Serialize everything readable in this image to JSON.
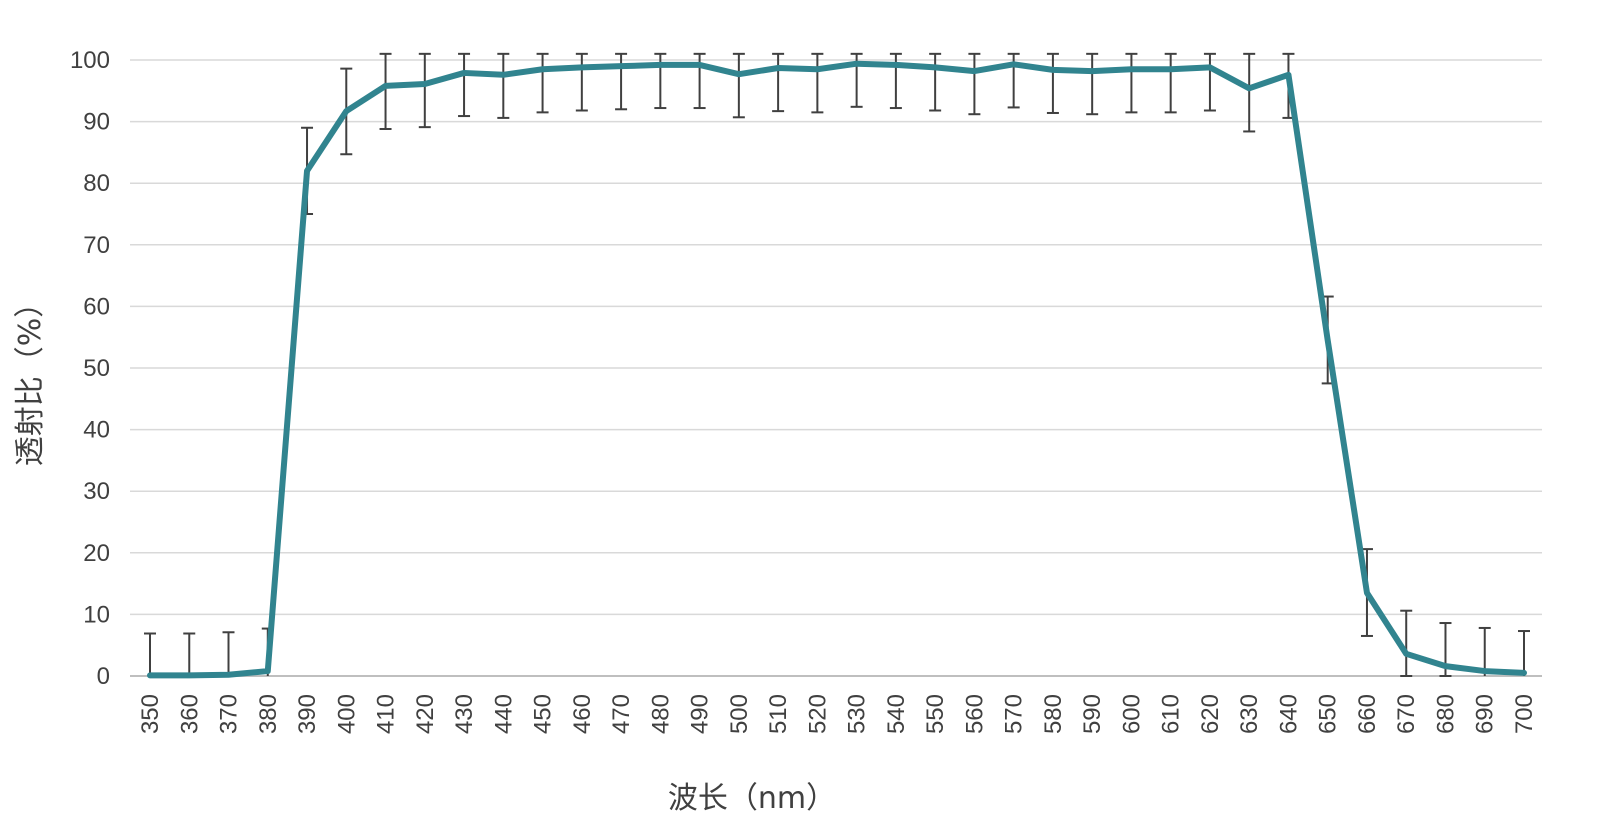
{
  "chart_data": {
    "type": "line",
    "title": "",
    "xlabel": "波长（nm）",
    "ylabel": "透射比（%）",
    "ylim": [
      0,
      100
    ],
    "yticks": [
      0,
      10,
      20,
      30,
      40,
      50,
      60,
      70,
      80,
      90,
      100
    ],
    "grid": "horizontal",
    "legend": "none",
    "line_color": "#31848F",
    "errorbar_color": "#404040",
    "x": [
      350,
      360,
      370,
      380,
      390,
      400,
      410,
      420,
      430,
      440,
      450,
      460,
      470,
      480,
      490,
      500,
      510,
      520,
      530,
      540,
      550,
      560,
      570,
      580,
      590,
      600,
      610,
      620,
      630,
      640,
      650,
      660,
      670,
      680,
      690,
      700
    ],
    "x_labels": [
      "350",
      "360",
      "370",
      "380",
      "390",
      "400",
      "410",
      "420",
      "430",
      "440",
      "450",
      "460",
      "470",
      "480",
      "490",
      "500",
      "510",
      "520",
      "530",
      "540",
      "550",
      "560",
      "570",
      "580",
      "590",
      "600",
      "610",
      "620",
      "630",
      "640",
      "650",
      "660",
      "670",
      "680",
      "690",
      "700"
    ],
    "series": [
      {
        "values": [
          0.1,
          0.1,
          0.2,
          0.8,
          82.0,
          91.7,
          95.8,
          96.1,
          97.9,
          97.6,
          98.5,
          98.8,
          99.0,
          99.2,
          99.2,
          97.7,
          98.7,
          98.5,
          99.4,
          99.2,
          98.8,
          98.2,
          99.3,
          98.4,
          98.2,
          98.5,
          98.5,
          98.8,
          95.4,
          97.6,
          54.5,
          13.5,
          3.6,
          1.6,
          0.8,
          0.5
        ],
        "error_plus": [
          6.8,
          6.8,
          6.9,
          6.9,
          7.0,
          6.9,
          6.8,
          6.9,
          6.8,
          6.8,
          6.9,
          6.8,
          6.8,
          6.8,
          6.8,
          6.9,
          6.9,
          6.9,
          6.8,
          6.9,
          6.8,
          6.8,
          6.8,
          6.8,
          6.8,
          6.8,
          6.8,
          6.8,
          6.8,
          6.8,
          7.1,
          7.1,
          7.0,
          7.0,
          7.0,
          6.8
        ],
        "error_minus": [
          0.1,
          0.1,
          0.2,
          0.8,
          7.0,
          7.0,
          7.0,
          7.0,
          7.0,
          7.0,
          7.0,
          7.0,
          7.0,
          7.0,
          7.0,
          7.0,
          7.0,
          7.0,
          7.0,
          7.0,
          7.0,
          7.0,
          7.0,
          7.0,
          7.0,
          7.0,
          7.0,
          7.0,
          7.0,
          7.0,
          7.0,
          7.0,
          3.6,
          1.6,
          0.8,
          0.5
        ]
      }
    ]
  }
}
